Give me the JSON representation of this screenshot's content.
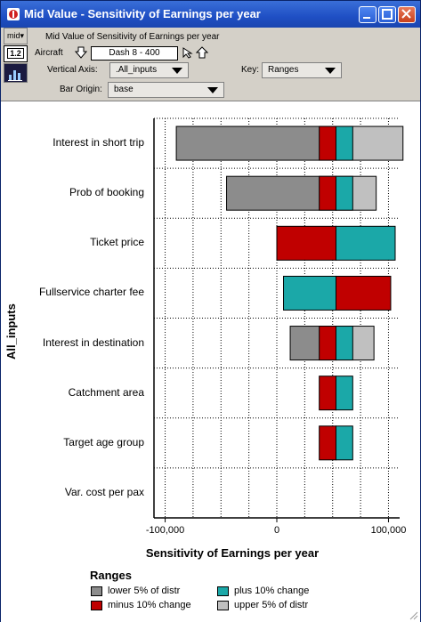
{
  "window": {
    "title": "Mid Value - Sensitivity of Earnings per year"
  },
  "toolbar": {
    "mid_label": "mid",
    "table_label": "1.2",
    "heading": "Mid Value of Sensitivity of Earnings per year",
    "aircraft_label": "Aircraft",
    "aircraft_value": "Dash 8 - 400",
    "vertical_axis_label": "Vertical Axis:",
    "vertical_axis_value": ".All_inputs",
    "key_label": "Key:",
    "key_value": "Ranges",
    "bar_origin_label": "Bar Origin:",
    "bar_origin_value": "base"
  },
  "chart_data": {
    "type": "bar",
    "orientation": "horizontal",
    "ylabel": "All_inputs",
    "xlabel": "Sensitivity of Earnings per year",
    "xlim": [
      -110000,
      110000
    ],
    "xticks": [
      -100000,
      0,
      100000
    ],
    "xtick_labels": [
      "-100,000",
      "0",
      "100,000"
    ],
    "base": 53000,
    "grid": true,
    "legend_title": "Ranges",
    "categories": [
      "Interest in short trip",
      "Prob of booking",
      "Ticket price",
      "Fullservice charter fee",
      "Interest in destination",
      "Catchment area",
      "Target age group",
      "Var. cost per pax"
    ],
    "series": [
      {
        "name": "lower 5% of distr",
        "color": "#8c8c8c",
        "values": [
          -90000,
          -45000,
          null,
          null,
          12000,
          null,
          null,
          null
        ]
      },
      {
        "name": "minus 10% change",
        "color": "#c00000",
        "values": [
          38000,
          38000,
          0,
          102000,
          38000,
          38000,
          38000,
          null
        ]
      },
      {
        "name": "plus 10% change",
        "color": "#1ba8a8",
        "values": [
          68000,
          68000,
          106000,
          6000,
          68000,
          68000,
          68000,
          null
        ]
      },
      {
        "name": "upper 5% of distr",
        "color": "#c0c0c0",
        "values": [
          113000,
          89000,
          null,
          null,
          87000,
          null,
          null,
          null
        ]
      }
    ],
    "legend": [
      {
        "name": "lower 5% of distr",
        "color": "#8c8c8c"
      },
      {
        "name": "plus 10% change",
        "color": "#1ba8a8"
      },
      {
        "name": "minus 10% change",
        "color": "#c00000"
      },
      {
        "name": "upper 5% of distr",
        "color": "#c0c0c0"
      }
    ]
  }
}
